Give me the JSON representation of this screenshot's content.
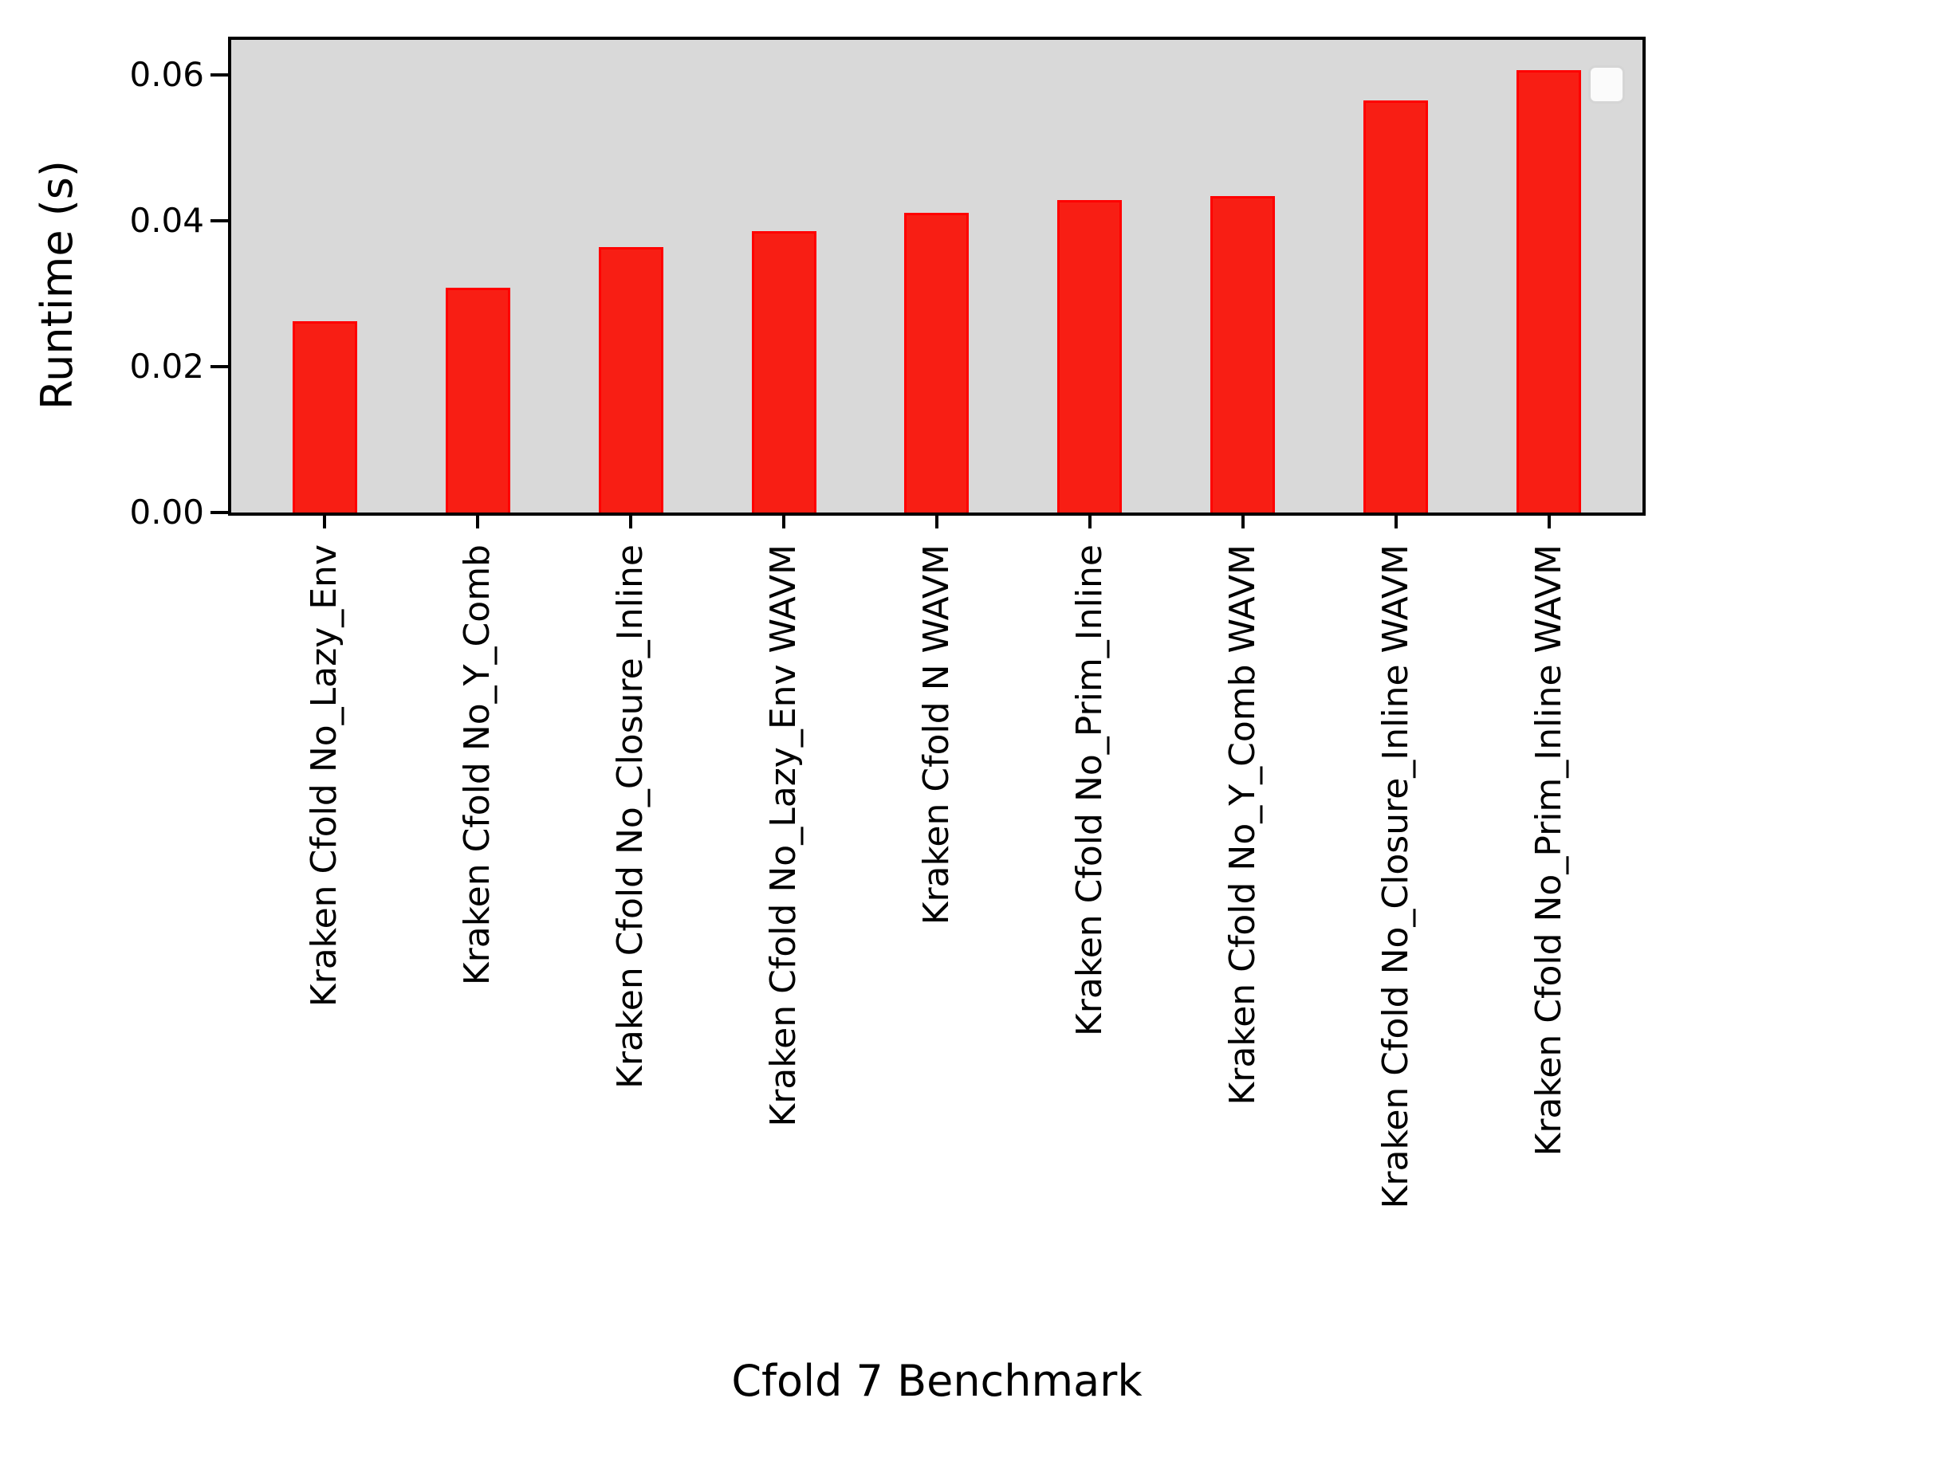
{
  "chart_data": {
    "type": "bar",
    "xlabel": "Cfold 7 Benchmark",
    "ylabel": "Runtime (s)",
    "categories": [
      "Kraken Cfold No_Lazy_Env",
      "Kraken Cfold No_Y_Comb",
      "Kraken Cfold No_Closure_Inline",
      "Kraken Cfold No_Lazy_Env WAVM",
      "Kraken Cfold N WAVM",
      "Kraken Cfold No_Prim_Inline",
      "Kraken Cfold No_Y_Comb WAVM",
      "Kraken Cfold No_Closure_Inline WAVM",
      "Kraken Cfold No_Prim_Inline WAVM"
    ],
    "values": [
      0.0262,
      0.0308,
      0.0364,
      0.0386,
      0.0411,
      0.0428,
      0.0434,
      0.0565,
      0.0607
    ],
    "ytick_labels": [
      "0.00",
      "0.02",
      "0.04",
      "0.06"
    ],
    "yticks": [
      0.0,
      0.02,
      0.04,
      0.06
    ],
    "ylim": [
      0,
      0.0648
    ],
    "grid": false,
    "legend": "empty box, upper right",
    "colors": {
      "bar_fill": "#f81e14",
      "bar_edge": "#ff0000",
      "plot_background": "#d9d9d9",
      "spine": "#000000",
      "text": "#000000",
      "legend_fill": "#fbfbfb",
      "legend_edge": "#d5d5d5"
    }
  }
}
